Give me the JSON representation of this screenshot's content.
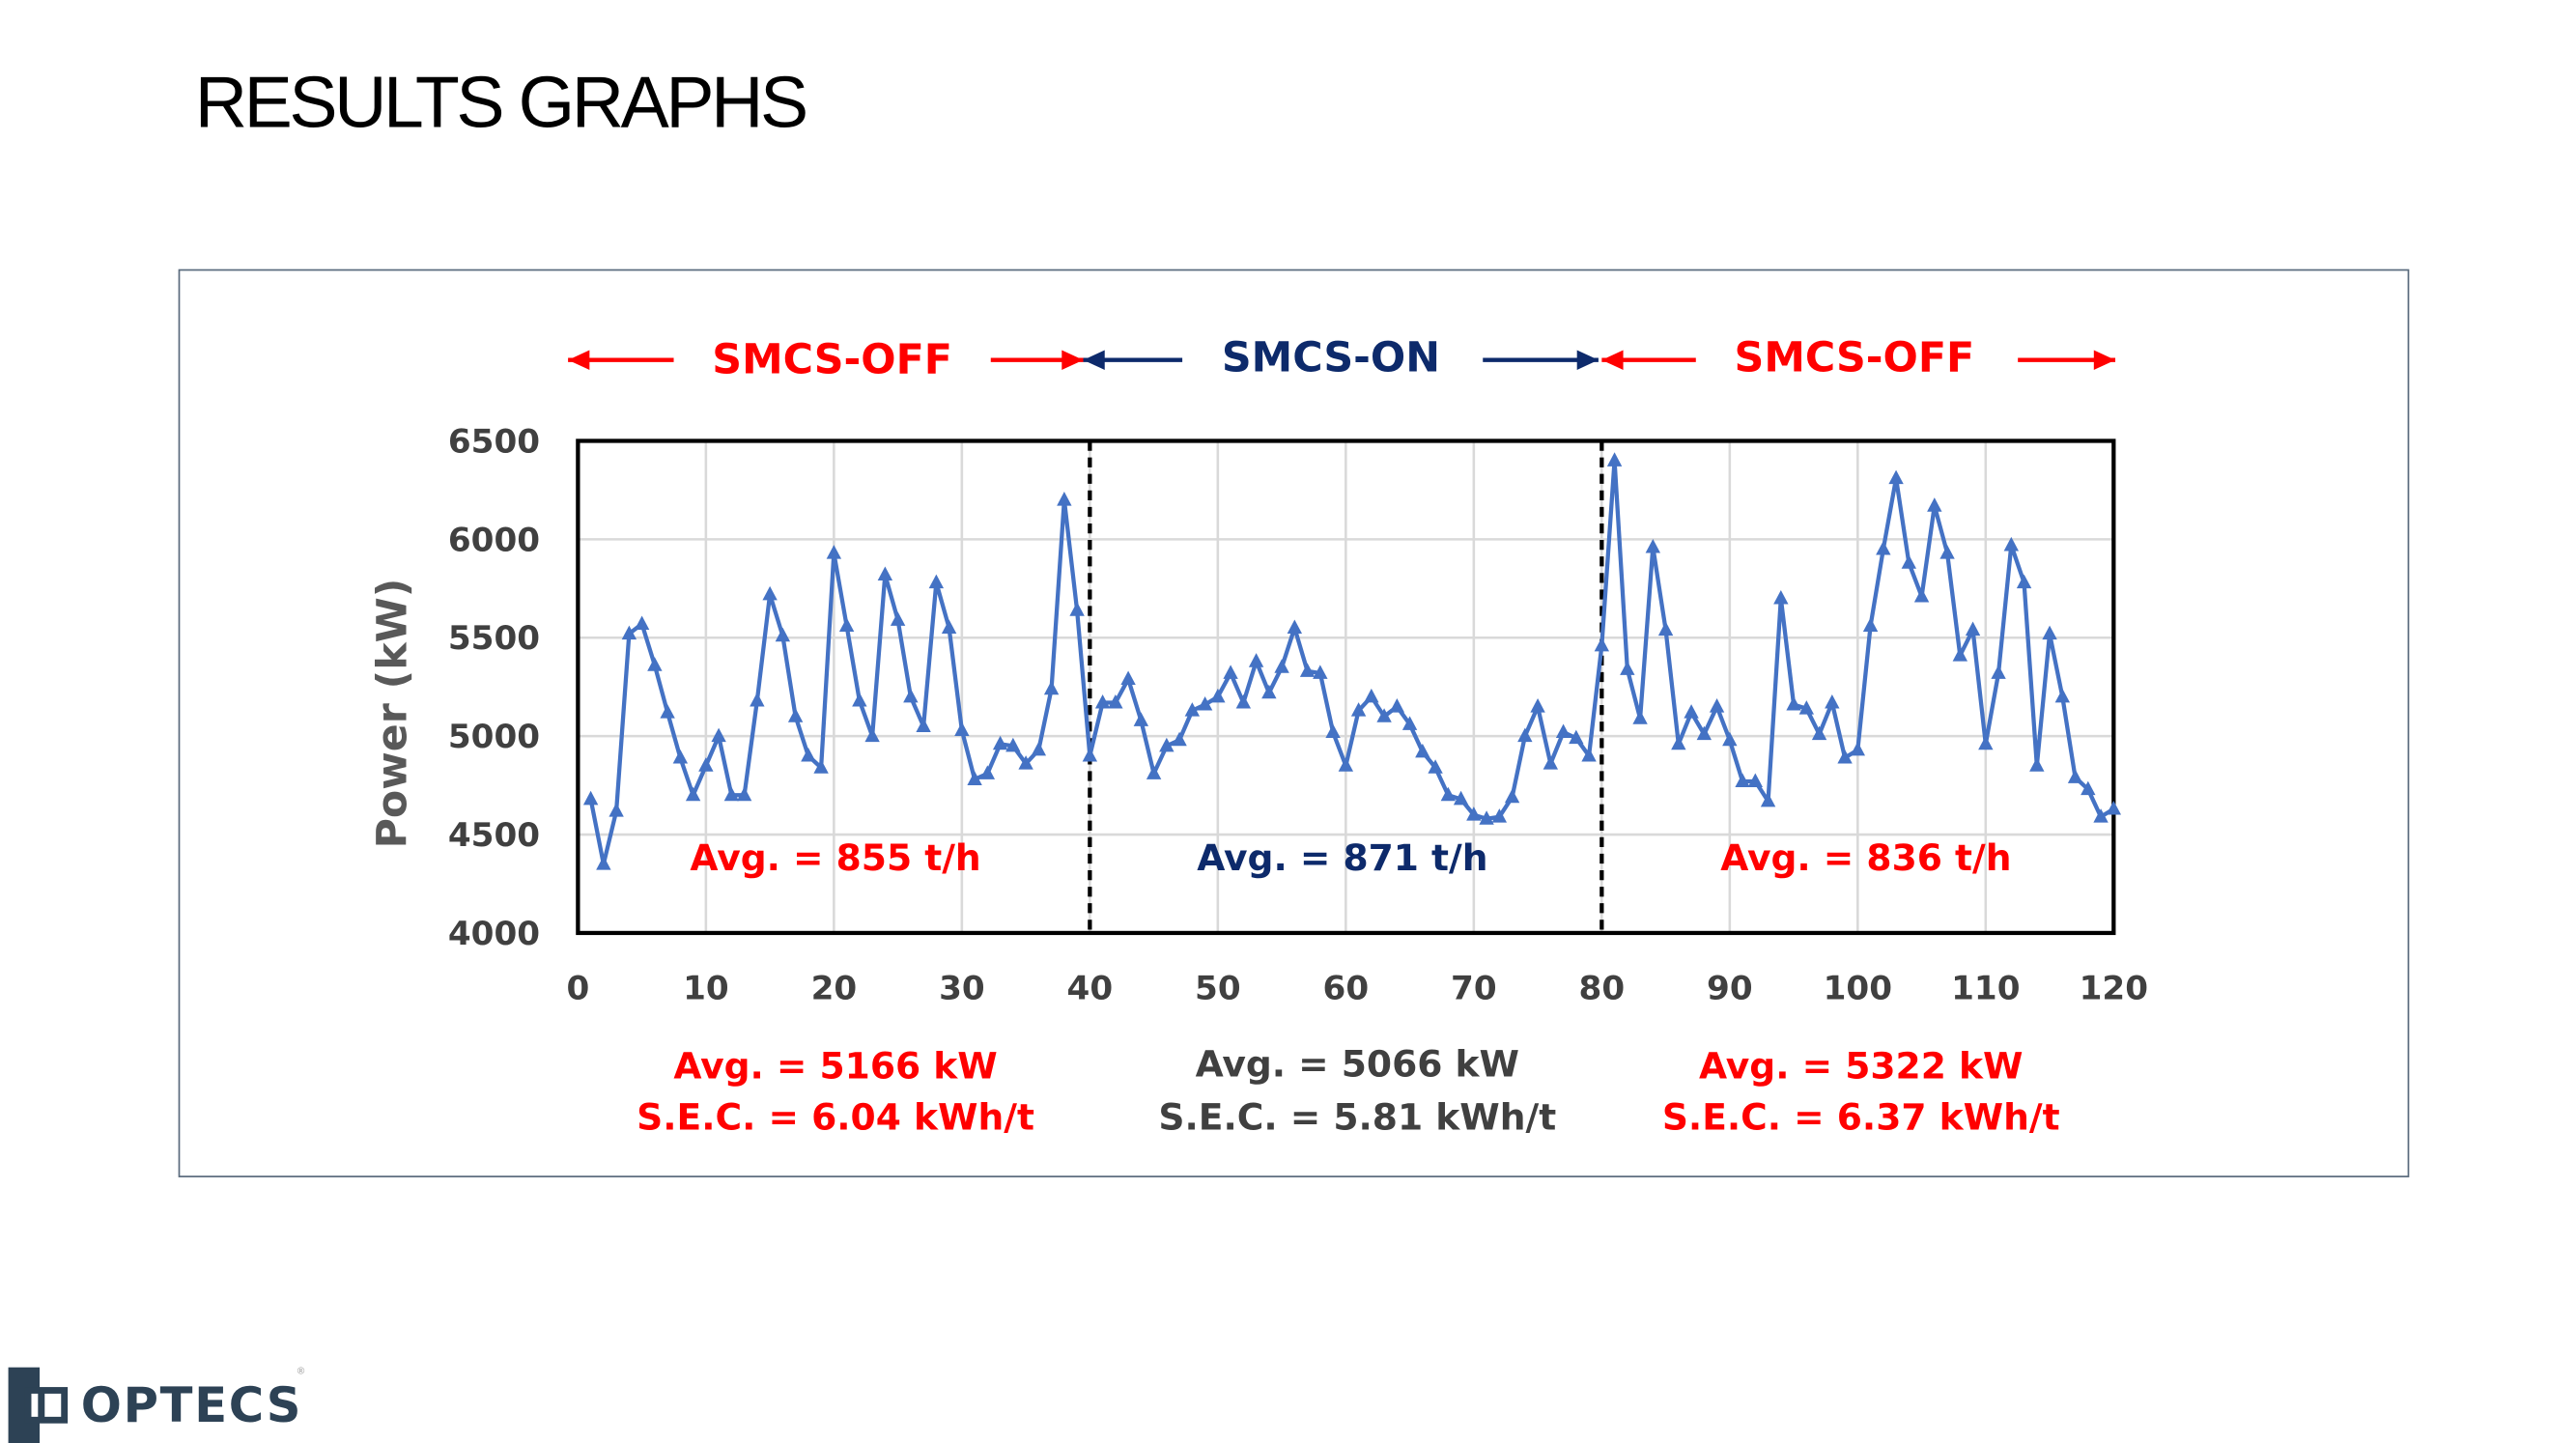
{
  "page": {
    "title": "RESULTS GRAPHS"
  },
  "logo": {
    "text": "OPTECS",
    "registered": "®"
  },
  "colors": {
    "series": "#4472c4",
    "off": "#ff0000",
    "on": "#0d2a6b",
    "neutral": "#404040"
  },
  "chart_data": {
    "type": "line",
    "title": "",
    "xlabel": "",
    "ylabel": "Power (kW)",
    "xlim": [
      0,
      120
    ],
    "ylim": [
      4000,
      6500
    ],
    "xticks": [
      0,
      10,
      20,
      30,
      40,
      50,
      60,
      70,
      80,
      90,
      100,
      110,
      120
    ],
    "yticks": [
      4000,
      4500,
      5000,
      5500,
      6000,
      6500
    ],
    "grid": true,
    "marker": "triangle",
    "x_start": 1,
    "values": [
      4680,
      4350,
      4620,
      5520,
      5570,
      5360,
      5120,
      4890,
      4700,
      4850,
      5000,
      4700,
      4700,
      5180,
      5720,
      5510,
      5100,
      4900,
      4840,
      5930,
      5560,
      5180,
      5000,
      5820,
      5590,
      5200,
      5050,
      5780,
      5550,
      5030,
      4780,
      4810,
      4960,
      4950,
      4860,
      4930,
      5240,
      6200,
      5640,
      4900,
      5170,
      5170,
      5290,
      5080,
      4810,
      4950,
      4980,
      5130,
      5160,
      5200,
      5320,
      5170,
      5380,
      5220,
      5350,
      5550,
      5330,
      5320,
      5020,
      4850,
      5130,
      5200,
      5100,
      5150,
      5060,
      4920,
      4840,
      4700,
      4680,
      4600,
      4580,
      4590,
      4690,
      5000,
      5150,
      4860,
      5020,
      4990,
      4900,
      5460,
      6400,
      5340,
      5090,
      5960,
      5540,
      4960,
      5120,
      5010,
      5150,
      4980,
      4770,
      4770,
      4670,
      5700,
      5160,
      5140,
      5010,
      5170,
      4890,
      4930,
      5560,
      5950,
      6310,
      5880,
      5710,
      6170,
      5930,
      5410,
      5540,
      4960,
      5320,
      5970,
      5780,
      4850,
      5520,
      5200,
      4790,
      4730,
      4590,
      4630
    ],
    "dividers": [
      40,
      80
    ],
    "segments": [
      {
        "label": "SMCS-OFF",
        "range": [
          0,
          40
        ],
        "throughput": "Avg. = 855 t/h",
        "power": "Avg. = 5166 kW",
        "sec": "S.E.C. = 6.04 kWh/t",
        "color": "#ff0000",
        "stat_color": "#ff0000"
      },
      {
        "label": "SMCS-ON",
        "range": [
          40,
          80
        ],
        "throughput": "Avg. = 871 t/h",
        "power": "Avg. = 5066 kW",
        "sec": "S.E.C. = 5.81 kWh/t",
        "color": "#0d2a6b",
        "stat_color": "#404040"
      },
      {
        "label": "SMCS-OFF",
        "range": [
          80,
          120
        ],
        "throughput": "Avg. = 836 t/h",
        "power": "Avg. = 5322 kW",
        "sec": "S.E.C. = 6.37 kWh/t",
        "color": "#ff0000",
        "stat_color": "#ff0000"
      }
    ]
  }
}
